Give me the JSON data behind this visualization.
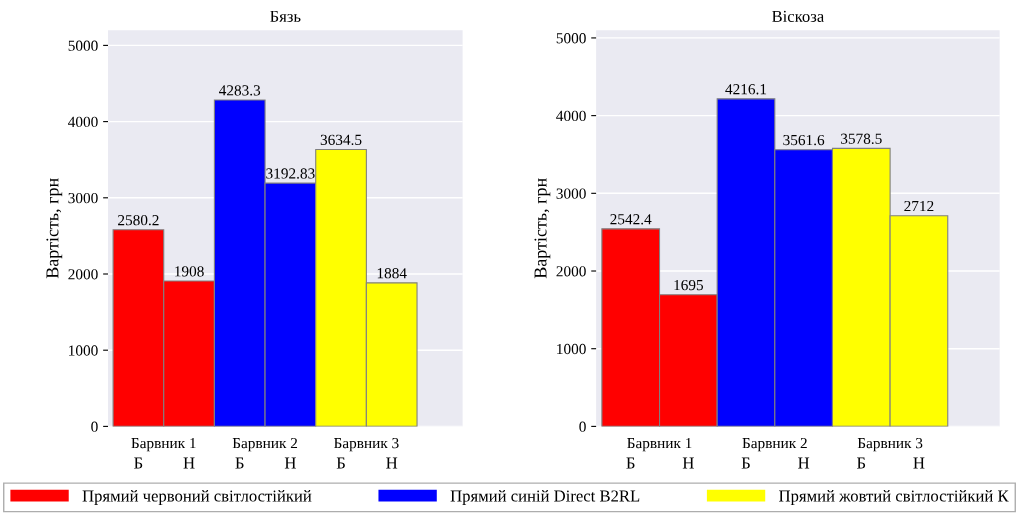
{
  "chart_data": [
    {
      "type": "bar",
      "title": "Бязь",
      "ylabel": "Вартість, грн",
      "categories": [
        "Б",
        "Н",
        "Б",
        "Н",
        "Б",
        "Н"
      ],
      "series": [
        {
          "name": "Прямий червоний світлостійкий",
          "color": "#ff0000",
          "values": [
            2580.2,
            1908,
            null,
            null,
            null,
            null
          ]
        },
        {
          "name": "Прямий синій Direct B2RL",
          "color": "#0000ff",
          "values": [
            null,
            null,
            4283.3,
            3192.83,
            null,
            null
          ]
        },
        {
          "name": "Прямий жовтий світлостійкий К",
          "color": "#ffff00",
          "values": [
            null,
            null,
            null,
            null,
            3634.5,
            1884
          ]
        }
      ],
      "annotations": [
        "Барвник 1",
        "Барвник 2",
        "Барвник 3"
      ],
      "ylim": [
        0,
        5200
      ],
      "yticks": [
        0,
        1000,
        2000,
        3000,
        4000,
        5000
      ],
      "grid": "y",
      "data_labels": true,
      "legend": "bottom"
    },
    {
      "type": "bar",
      "title": "Віскоза",
      "ylabel": "Вартість, грн",
      "categories": [
        "Б",
        "Н",
        "Б",
        "Н",
        "Б",
        "Н"
      ],
      "series": [
        {
          "color": "#ff0000",
          "values": [
            2542.4,
            1695,
            null,
            null,
            null,
            null
          ]
        },
        {
          "color": "#0000ff",
          "values": [
            null,
            null,
            4216.1,
            3561.6,
            null,
            null
          ]
        },
        {
          "color": "#ffff00",
          "values": [
            null,
            null,
            null,
            null,
            3578.5,
            2712
          ]
        }
      ],
      "annotations": [
        "Барвник 1",
        "Барвник 2",
        "Барвник 3"
      ],
      "ylim": [
        0,
        5100
      ],
      "yticks": [
        0,
        1000,
        2000,
        3000,
        4000,
        5000
      ],
      "grid": "y",
      "data_labels": true
    }
  ]
}
